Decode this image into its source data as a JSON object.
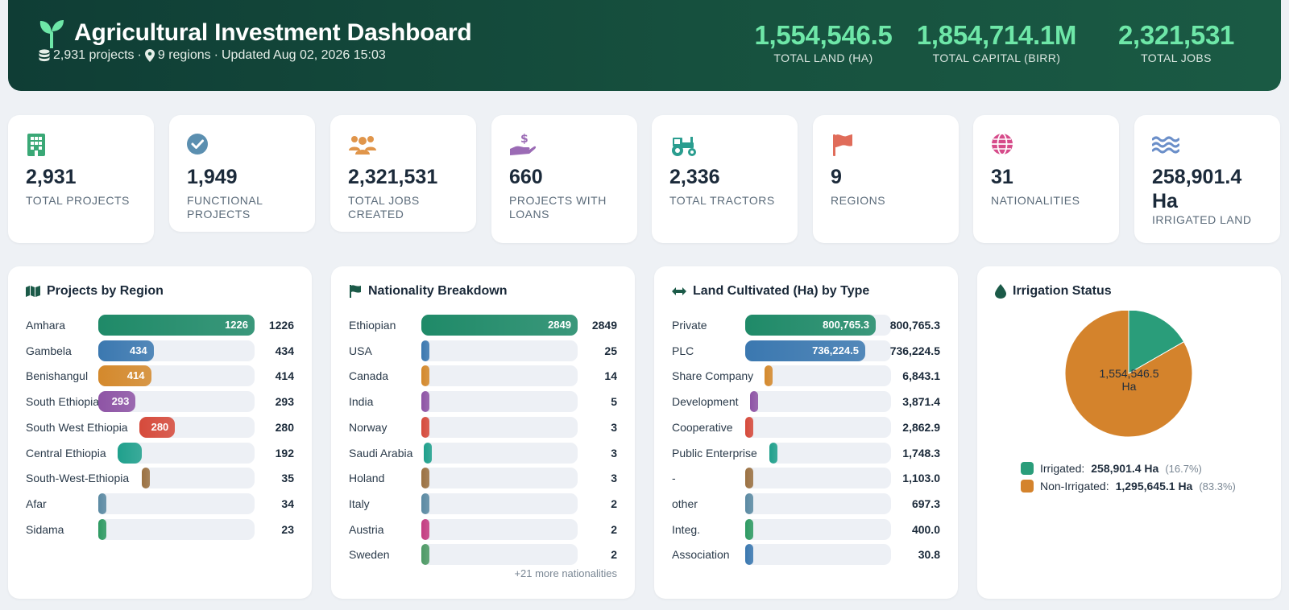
{
  "header": {
    "title": "Agricultural Investment Dashboard",
    "meta_projects": "2,931 projects",
    "meta_regions": "9 regions",
    "meta_updated": "Updated Aug 02, 2026 15:03",
    "stats": [
      {
        "value": "1,554,546.5",
        "label": "TOTAL LAND (HA)"
      },
      {
        "value": "1,854,714.1M",
        "label": "TOTAL CAPITAL (BIRR)"
      },
      {
        "value": "2,321,531",
        "label": "TOTAL JOBS"
      }
    ]
  },
  "kpis": [
    {
      "icon": "building-icon",
      "color": "#3aa876",
      "value": "2,931",
      "label": "TOTAL PROJECTS"
    },
    {
      "icon": "check-circle-icon",
      "color": "#5b8fb0",
      "value": "1,949",
      "label": "FUNCTIONAL PROJECTS"
    },
    {
      "icon": "users-icon",
      "color": "#e0954a",
      "value": "2,321,531",
      "label": "TOTAL JOBS CREATED"
    },
    {
      "icon": "hand-dollar-icon",
      "color": "#9b6bb5",
      "value": "660",
      "label": "PROJECTS WITH LOANS"
    },
    {
      "icon": "tractor-icon",
      "color": "#2a9d8f",
      "value": "2,336",
      "label": "TOTAL TRACTORS"
    },
    {
      "icon": "flag-icon",
      "color": "#e06c5a",
      "value": "9",
      "label": "REGIONS"
    },
    {
      "icon": "globe-icon",
      "color": "#d64b8a",
      "value": "31",
      "label": "NATIONALITIES"
    },
    {
      "icon": "water-icon",
      "color": "#6b8fc9",
      "value": "258,901.4 Ha",
      "label": "IRRIGATED LAND"
    }
  ],
  "region_card": {
    "title": "Projects by Region",
    "icon": "map-icon",
    "rows": [
      {
        "name": "Amhara",
        "value": 1226,
        "label": "1226",
        "color": "#1f8a68"
      },
      {
        "name": "Gambela",
        "value": 434,
        "label": "434",
        "color": "#3b78b0"
      },
      {
        "name": "Benishangul",
        "value": 414,
        "label": "414",
        "color": "#d4892c"
      },
      {
        "name": "South Ethiopia",
        "value": 293,
        "label": "293",
        "color": "#8e54a5"
      },
      {
        "name": "South West Ethiopia",
        "value": 280,
        "label": "280",
        "color": "#d64a3b"
      },
      {
        "name": "Central Ethiopia",
        "value": 192,
        "label": "192",
        "color": "#1fa08c"
      },
      {
        "name": "South-West-Ethiopia",
        "value": 35,
        "label": "35",
        "color": "#9b7142"
      },
      {
        "name": "Afar",
        "value": 34,
        "label": "34",
        "color": "#5b8aa3"
      },
      {
        "name": "Sidama",
        "value": 23,
        "label": "23",
        "color": "#2e9a62"
      }
    ]
  },
  "nation_card": {
    "title": "Nationality Breakdown",
    "icon": "flag-icon",
    "rows": [
      {
        "name": "Ethiopian",
        "value": 2849,
        "label": "2849",
        "color": "#1f8a68"
      },
      {
        "name": "USA",
        "value": 25,
        "label": "25",
        "color": "#3b78b0"
      },
      {
        "name": "Canada",
        "value": 14,
        "label": "14",
        "color": "#d4892c"
      },
      {
        "name": "India",
        "value": 5,
        "label": "5",
        "color": "#8e54a5"
      },
      {
        "name": "Norway",
        "value": 3,
        "label": "3",
        "color": "#d64a3b"
      },
      {
        "name": "Saudi Arabia",
        "value": 3,
        "label": "3",
        "color": "#1fa08c"
      },
      {
        "name": "Holand",
        "value": 3,
        "label": "3",
        "color": "#9b7142"
      },
      {
        "name": "Italy",
        "value": 2,
        "label": "2",
        "color": "#5b8aa3"
      },
      {
        "name": "Austria",
        "value": 2,
        "label": "2",
        "color": "#c43d82"
      },
      {
        "name": "Sweden",
        "value": 2,
        "label": "2",
        "color": "#4e9a66"
      }
    ],
    "more": "+21 more nationalities"
  },
  "land_card": {
    "title": "Land Cultivated (Ha) by Type",
    "icon": "arrows-h-icon",
    "rows": [
      {
        "name": "Private",
        "value": 800765.3,
        "label": "800,765.3",
        "color": "#1f8a68"
      },
      {
        "name": "PLC",
        "value": 736224.5,
        "label": "736,224.5",
        "color": "#3b78b0"
      },
      {
        "name": "Share Company",
        "value": 6843.1,
        "label": "6,843.1",
        "color": "#d4892c"
      },
      {
        "name": "Development",
        "value": 3871.4,
        "label": "3,871.4",
        "color": "#8e54a5"
      },
      {
        "name": "Cooperative",
        "value": 2862.9,
        "label": "2,862.9",
        "color": "#d64a3b"
      },
      {
        "name": "Public Enterprise",
        "value": 1748.3,
        "label": "1,748.3",
        "color": "#1fa08c"
      },
      {
        "name": "-",
        "value": 1103.0,
        "label": "1,103.0",
        "color": "#9b7142"
      },
      {
        "name": "other",
        "value": 697.3,
        "label": "697.3",
        "color": "#5b8aa3"
      },
      {
        "name": "Integ.",
        "value": 400.0,
        "label": "400.0",
        "color": "#2e9a62"
      },
      {
        "name": "Association",
        "value": 30.8,
        "label": "30.8",
        "color": "#3b78b0"
      }
    ]
  },
  "irrigation_card": {
    "title": "Irrigation Status",
    "icon": "droplet-icon",
    "center_value": "1,554,546.5",
    "center_unit": "Ha",
    "legend": [
      {
        "label": "Irrigated:",
        "value": "258,901.4 Ha",
        "pct": "(16.7%)",
        "fraction": 0.167,
        "color": "#2a9d7a"
      },
      {
        "label": "Non-Irrigated:",
        "value": "1,295,645.1 Ha",
        "pct": "(83.3%)",
        "fraction": 0.833,
        "color": "#d4832c"
      }
    ]
  }
}
